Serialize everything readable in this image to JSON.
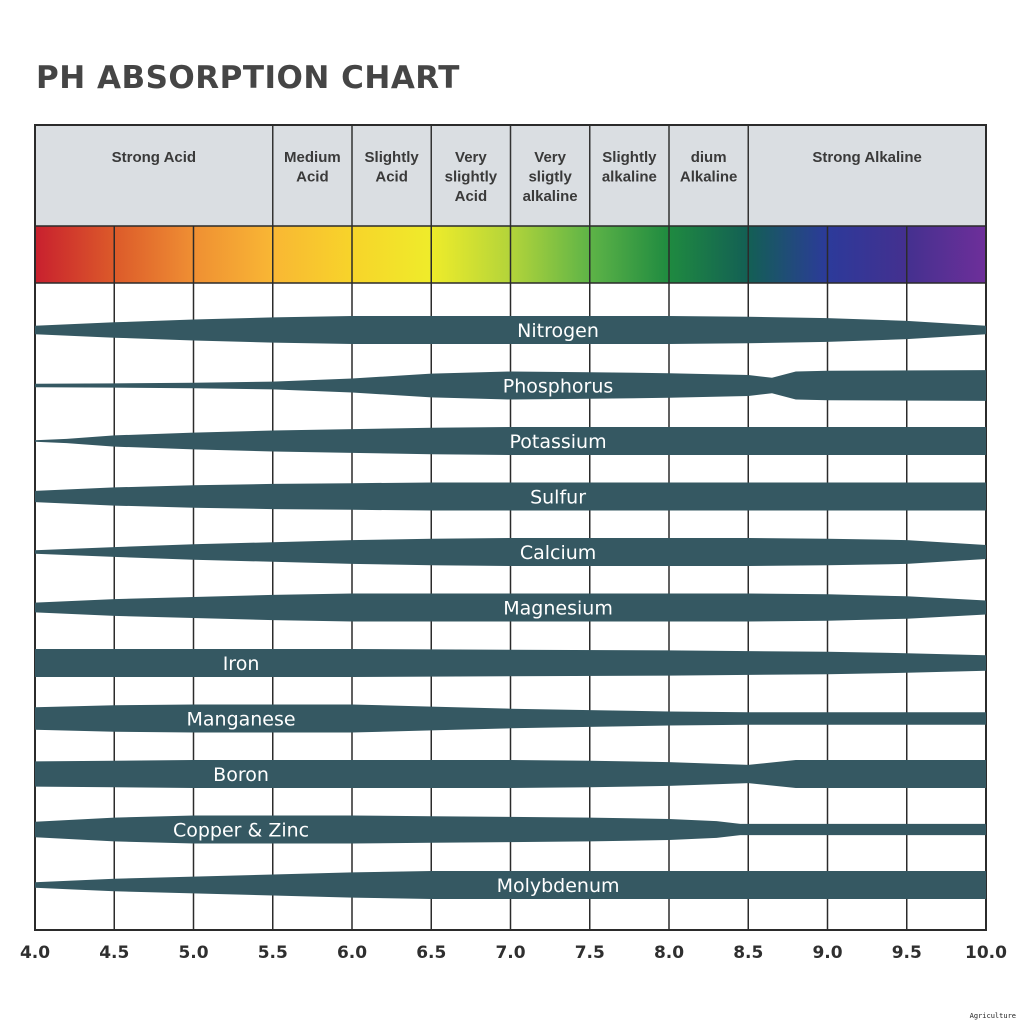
{
  "title": "PH ABSORPTION CHART",
  "footer_tag": "Agriculture",
  "chart_data": {
    "type": "area",
    "title": "PH ABSORPTION CHART",
    "xlabel": "",
    "ylabel": "",
    "xlim": [
      4.0,
      10.0
    ],
    "x_ticks": [
      "4.0",
      "4.5",
      "5.0",
      "5.5",
      "6.0",
      "6.5",
      "7.0",
      "7.5",
      "8.0",
      "8.5",
      "9.0",
      "9.5",
      "10.0"
    ],
    "grid": true,
    "ph_zones": [
      {
        "label": "Strong Acid",
        "from": 4.0,
        "to": 5.5
      },
      {
        "label": "Medium\nAcid",
        "from": 5.5,
        "to": 6.0
      },
      {
        "label": "Slightly\nAcid",
        "from": 6.0,
        "to": 6.5
      },
      {
        "label": "Very\nslightly\nAcid",
        "from": 6.5,
        "to": 7.0
      },
      {
        "label": "Very\nsligtly\nalkaline",
        "from": 7.0,
        "to": 7.5
      },
      {
        "label": "Slightly\nalkaline",
        "from": 7.5,
        "to": 8.0
      },
      {
        "label": "dium\nAlkaline",
        "from": 8.0,
        "to": 8.5
      },
      {
        "label": "Strong Alkaline",
        "from": 8.5,
        "to": 10.0
      }
    ],
    "color_scale": [
      {
        "ph": 4.0,
        "color": "#c8202e"
      },
      {
        "ph": 4.5,
        "color": "#dc5a2a"
      },
      {
        "ph": 5.0,
        "color": "#ef8f33"
      },
      {
        "ph": 5.5,
        "color": "#f9b734"
      },
      {
        "ph": 6.0,
        "color": "#f7d42a"
      },
      {
        "ph": 6.5,
        "color": "#efec2a"
      },
      {
        "ph": 7.0,
        "color": "#b3d43a"
      },
      {
        "ph": 7.5,
        "color": "#5eb447"
      },
      {
        "ph": 8.0,
        "color": "#1f8a40"
      },
      {
        "ph": 8.5,
        "color": "#135f54"
      },
      {
        "ph": 9.0,
        "color": "#2c3a9a"
      },
      {
        "ph": 9.5,
        "color": "#44308f"
      },
      {
        "ph": 10.0,
        "color": "#6e2f9a"
      }
    ],
    "band_color": "#355862",
    "relative_scale_max": 1.0,
    "series": [
      {
        "name": "Nitrogen",
        "label_ph": 7.3,
        "points": [
          [
            4.0,
            0.3
          ],
          [
            4.5,
            0.55
          ],
          [
            5.0,
            0.75
          ],
          [
            5.5,
            0.9
          ],
          [
            6.0,
            1.0
          ],
          [
            7.0,
            1.0
          ],
          [
            8.0,
            1.0
          ],
          [
            8.5,
            0.95
          ],
          [
            9.0,
            0.85
          ],
          [
            9.5,
            0.65
          ],
          [
            10.0,
            0.3
          ]
        ]
      },
      {
        "name": "Phosphorus",
        "label_ph": 7.3,
        "points": [
          [
            4.0,
            0.12
          ],
          [
            4.5,
            0.15
          ],
          [
            5.0,
            0.2
          ],
          [
            5.5,
            0.28
          ],
          [
            6.0,
            0.5
          ],
          [
            6.5,
            0.85
          ],
          [
            7.0,
            1.0
          ],
          [
            7.5,
            0.95
          ],
          [
            8.0,
            0.88
          ],
          [
            8.5,
            0.75
          ],
          [
            8.65,
            0.55
          ],
          [
            8.8,
            1.0
          ],
          [
            9.0,
            1.05
          ],
          [
            10.0,
            1.1
          ]
        ]
      },
      {
        "name": "Potassium",
        "label_ph": 7.3,
        "points": [
          [
            4.0,
            0.05
          ],
          [
            4.2,
            0.15
          ],
          [
            4.5,
            0.4
          ],
          [
            5.0,
            0.6
          ],
          [
            5.5,
            0.75
          ],
          [
            6.0,
            0.85
          ],
          [
            6.5,
            0.95
          ],
          [
            7.0,
            1.0
          ],
          [
            10.0,
            1.0
          ]
        ]
      },
      {
        "name": "Sulfur",
        "label_ph": 7.3,
        "points": [
          [
            4.0,
            0.4
          ],
          [
            4.5,
            0.65
          ],
          [
            5.0,
            0.8
          ],
          [
            5.5,
            0.9
          ],
          [
            6.0,
            0.95
          ],
          [
            6.5,
            1.0
          ],
          [
            10.0,
            1.0
          ]
        ]
      },
      {
        "name": "Calcium",
        "label_ph": 7.3,
        "points": [
          [
            4.0,
            0.12
          ],
          [
            4.5,
            0.35
          ],
          [
            5.0,
            0.55
          ],
          [
            5.5,
            0.7
          ],
          [
            6.0,
            0.85
          ],
          [
            6.5,
            0.95
          ],
          [
            7.0,
            1.0
          ],
          [
            8.5,
            1.0
          ],
          [
            9.0,
            0.95
          ],
          [
            9.5,
            0.85
          ],
          [
            10.0,
            0.5
          ]
        ]
      },
      {
        "name": "Magnesium",
        "label_ph": 7.3,
        "points": [
          [
            4.0,
            0.35
          ],
          [
            4.5,
            0.6
          ],
          [
            5.0,
            0.75
          ],
          [
            5.5,
            0.9
          ],
          [
            6.0,
            1.0
          ],
          [
            8.5,
            1.0
          ],
          [
            9.0,
            0.95
          ],
          [
            9.5,
            0.8
          ],
          [
            10.0,
            0.5
          ]
        ]
      },
      {
        "name": "Iron",
        "label_ph": 5.3,
        "points": [
          [
            4.0,
            1.0
          ],
          [
            5.0,
            1.0
          ],
          [
            6.0,
            1.0
          ],
          [
            7.0,
            0.95
          ],
          [
            8.0,
            0.9
          ],
          [
            9.0,
            0.8
          ],
          [
            9.5,
            0.7
          ],
          [
            10.0,
            0.55
          ]
        ]
      },
      {
        "name": "Manganese",
        "label_ph": 5.3,
        "points": [
          [
            4.0,
            0.8
          ],
          [
            4.5,
            0.95
          ],
          [
            5.0,
            1.0
          ],
          [
            6.0,
            1.0
          ],
          [
            6.5,
            0.85
          ],
          [
            7.0,
            0.7
          ],
          [
            7.5,
            0.6
          ],
          [
            8.0,
            0.5
          ],
          [
            8.5,
            0.45
          ],
          [
            10.0,
            0.45
          ]
        ]
      },
      {
        "name": "Boron",
        "label_ph": 5.3,
        "points": [
          [
            4.0,
            0.9
          ],
          [
            4.5,
            0.95
          ],
          [
            5.0,
            1.0
          ],
          [
            6.0,
            1.0
          ],
          [
            7.0,
            1.0
          ],
          [
            7.5,
            0.95
          ],
          [
            8.0,
            0.85
          ],
          [
            8.5,
            0.65
          ],
          [
            8.8,
            1.0
          ],
          [
            10.0,
            1.0
          ]
        ]
      },
      {
        "name": "Copper & Zinc",
        "label_ph": 5.3,
        "points": [
          [
            4.0,
            0.55
          ],
          [
            4.5,
            0.85
          ],
          [
            5.0,
            1.0
          ],
          [
            5.5,
            1.0
          ],
          [
            6.0,
            1.0
          ],
          [
            6.5,
            0.95
          ],
          [
            7.0,
            0.9
          ],
          [
            7.5,
            0.85
          ],
          [
            8.0,
            0.75
          ],
          [
            8.3,
            0.6
          ],
          [
            8.45,
            0.4
          ],
          [
            9.0,
            0.4
          ],
          [
            10.0,
            0.4
          ]
        ]
      },
      {
        "name": "Molybdenum",
        "label_ph": 7.3,
        "points": [
          [
            4.0,
            0.2
          ],
          [
            4.5,
            0.45
          ],
          [
            5.0,
            0.6
          ],
          [
            5.5,
            0.75
          ],
          [
            6.0,
            0.9
          ],
          [
            6.5,
            1.0
          ],
          [
            10.0,
            1.0
          ]
        ]
      }
    ]
  }
}
